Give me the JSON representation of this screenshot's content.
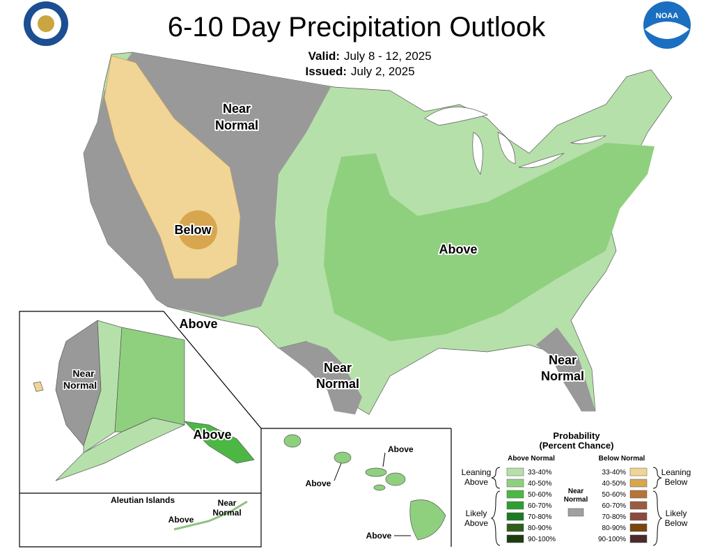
{
  "header": {
    "title": "6-10 Day Precipitation Outlook",
    "valid_label": "Valid:",
    "valid_dates": "July 8 - 12, 2025",
    "issued_label": "Issued:",
    "issued_date": "July 2, 2025"
  },
  "logos": {
    "noaa": "NOAA"
  },
  "conus_labels": [
    {
      "lines": [
        "Near",
        "Normal"
      ]
    },
    {
      "lines": [
        "Below"
      ]
    },
    {
      "lines": [
        "Above"
      ]
    },
    {
      "lines": [
        "Above"
      ]
    },
    {
      "lines": [
        "Near",
        "Normal"
      ]
    },
    {
      "lines": [
        "Near",
        "Normal"
      ]
    }
  ],
  "alaska": {
    "labels": [
      {
        "lines": [
          "Near",
          "Normal"
        ]
      },
      {
        "lines": [
          "Above"
        ]
      }
    ]
  },
  "aleutians": {
    "title": "Aleutian Islands",
    "labels": [
      {
        "lines": [
          "Above"
        ]
      },
      {
        "lines": [
          "Near",
          "Normal"
        ]
      }
    ]
  },
  "hawaii": {
    "labels": [
      {
        "lines": [
          "Above"
        ]
      },
      {
        "lines": [
          "Above"
        ]
      },
      {
        "lines": [
          "Above"
        ]
      }
    ]
  },
  "legend": {
    "title": [
      "Probability",
      "(Percent Chance)"
    ],
    "above_heading": "Above Normal",
    "below_heading": "Below Normal",
    "above": [
      {
        "range": "33-40%",
        "color": "#b6e0aa"
      },
      {
        "range": "40-50%",
        "color": "#8fd07f"
      },
      {
        "range": "50-60%",
        "color": "#4cb843"
      },
      {
        "range": "60-70%",
        "color": "#2e9e33"
      },
      {
        "range": "70-80%",
        "color": "#1d7a24"
      },
      {
        "range": "80-90%",
        "color": "#2e5f1a"
      },
      {
        "range": "90-100%",
        "color": "#1d3d10"
      }
    ],
    "below": [
      {
        "range": "33-40%",
        "color": "#f0d596"
      },
      {
        "range": "40-50%",
        "color": "#d8a64e"
      },
      {
        "range": "50-60%",
        "color": "#b8733a"
      },
      {
        "range": "60-70%",
        "color": "#9a5c42"
      },
      {
        "range": "70-80%",
        "color": "#8b4a3f"
      },
      {
        "range": "80-90%",
        "color": "#7a4510"
      },
      {
        "range": "90-100%",
        "color": "#4a2a2a"
      }
    ],
    "groups": [
      {
        "lines": [
          "Leaning",
          "Above"
        ]
      },
      {
        "lines": [
          "Likely",
          "Above"
        ]
      },
      {
        "lines": [
          "Leaning",
          "Below"
        ]
      },
      {
        "lines": [
          "Likely",
          "Below"
        ]
      }
    ],
    "near_normal": {
      "lines": [
        "Near",
        "Normal"
      ],
      "color": "#a0a0a0"
    }
  }
}
